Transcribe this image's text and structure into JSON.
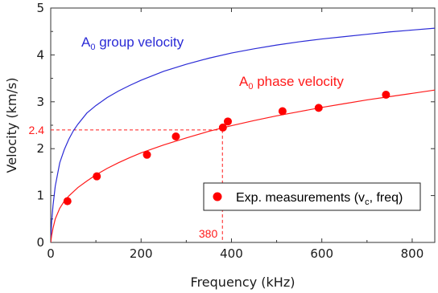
{
  "chart_data": {
    "type": "line",
    "xlabel": "Frequency (kHz)",
    "ylabel": "Velocity (km/s)",
    "xlim": [
      0,
      850
    ],
    "ylim": [
      0,
      5
    ],
    "x_ticks": [
      "0",
      "200",
      "400",
      "600",
      "800"
    ],
    "y_ticks": [
      "0",
      "1",
      "2",
      "3",
      "4",
      "5"
    ],
    "grid": false,
    "legend_position": "lower-right",
    "series": [
      {
        "name_main": "A",
        "name_sub": "0",
        "name_rest": " group velocity",
        "kind": "line",
        "color": "#2b2bd6",
        "x": [
          0,
          2,
          5,
          10,
          20,
          30,
          40,
          50,
          60,
          80,
          100,
          125,
          150,
          175,
          200,
          250,
          300,
          350,
          400,
          450,
          500,
          550,
          600,
          650,
          700,
          750,
          800,
          850
        ],
        "y": [
          0,
          0.43,
          0.78,
          1.2,
          1.7,
          1.98,
          2.2,
          2.38,
          2.52,
          2.76,
          2.92,
          3.09,
          3.23,
          3.35,
          3.46,
          3.65,
          3.8,
          3.93,
          4.04,
          4.13,
          4.21,
          4.28,
          4.34,
          4.39,
          4.44,
          4.49,
          4.53,
          4.57
        ]
      },
      {
        "name_main": "A",
        "name_sub": "0",
        "name_rest": " phase velocity",
        "kind": "line",
        "color": "#ff1a1a",
        "x": [
          0,
          2,
          5,
          10,
          20,
          30,
          40,
          50,
          60,
          80,
          100,
          125,
          150,
          175,
          200,
          250,
          300,
          350,
          400,
          450,
          500,
          550,
          600,
          650,
          700,
          750,
          800,
          850
        ],
        "y": [
          0,
          0.15,
          0.3,
          0.5,
          0.73,
          0.88,
          0.99,
          1.08,
          1.17,
          1.31,
          1.44,
          1.58,
          1.7,
          1.81,
          1.91,
          2.08,
          2.23,
          2.37,
          2.49,
          2.6,
          2.7,
          2.79,
          2.88,
          2.96,
          3.04,
          3.11,
          3.18,
          3.25
        ]
      },
      {
        "name": "Exp. measurements (v",
        "name_sub": "c",
        "name_rest": ", freq)",
        "kind": "scatter",
        "color": "#ff0000",
        "x": [
          37,
          102,
          213,
          277,
          381,
          392,
          513,
          593,
          742
        ],
        "y": [
          0.88,
          1.41,
          1.87,
          2.26,
          2.45,
          2.58,
          2.8,
          2.87,
          3.15
        ]
      }
    ],
    "reference": {
      "x": 380,
      "y": 2.4,
      "x_label": "380",
      "y_label": "2.4",
      "color": "#ff1a1a"
    }
  }
}
